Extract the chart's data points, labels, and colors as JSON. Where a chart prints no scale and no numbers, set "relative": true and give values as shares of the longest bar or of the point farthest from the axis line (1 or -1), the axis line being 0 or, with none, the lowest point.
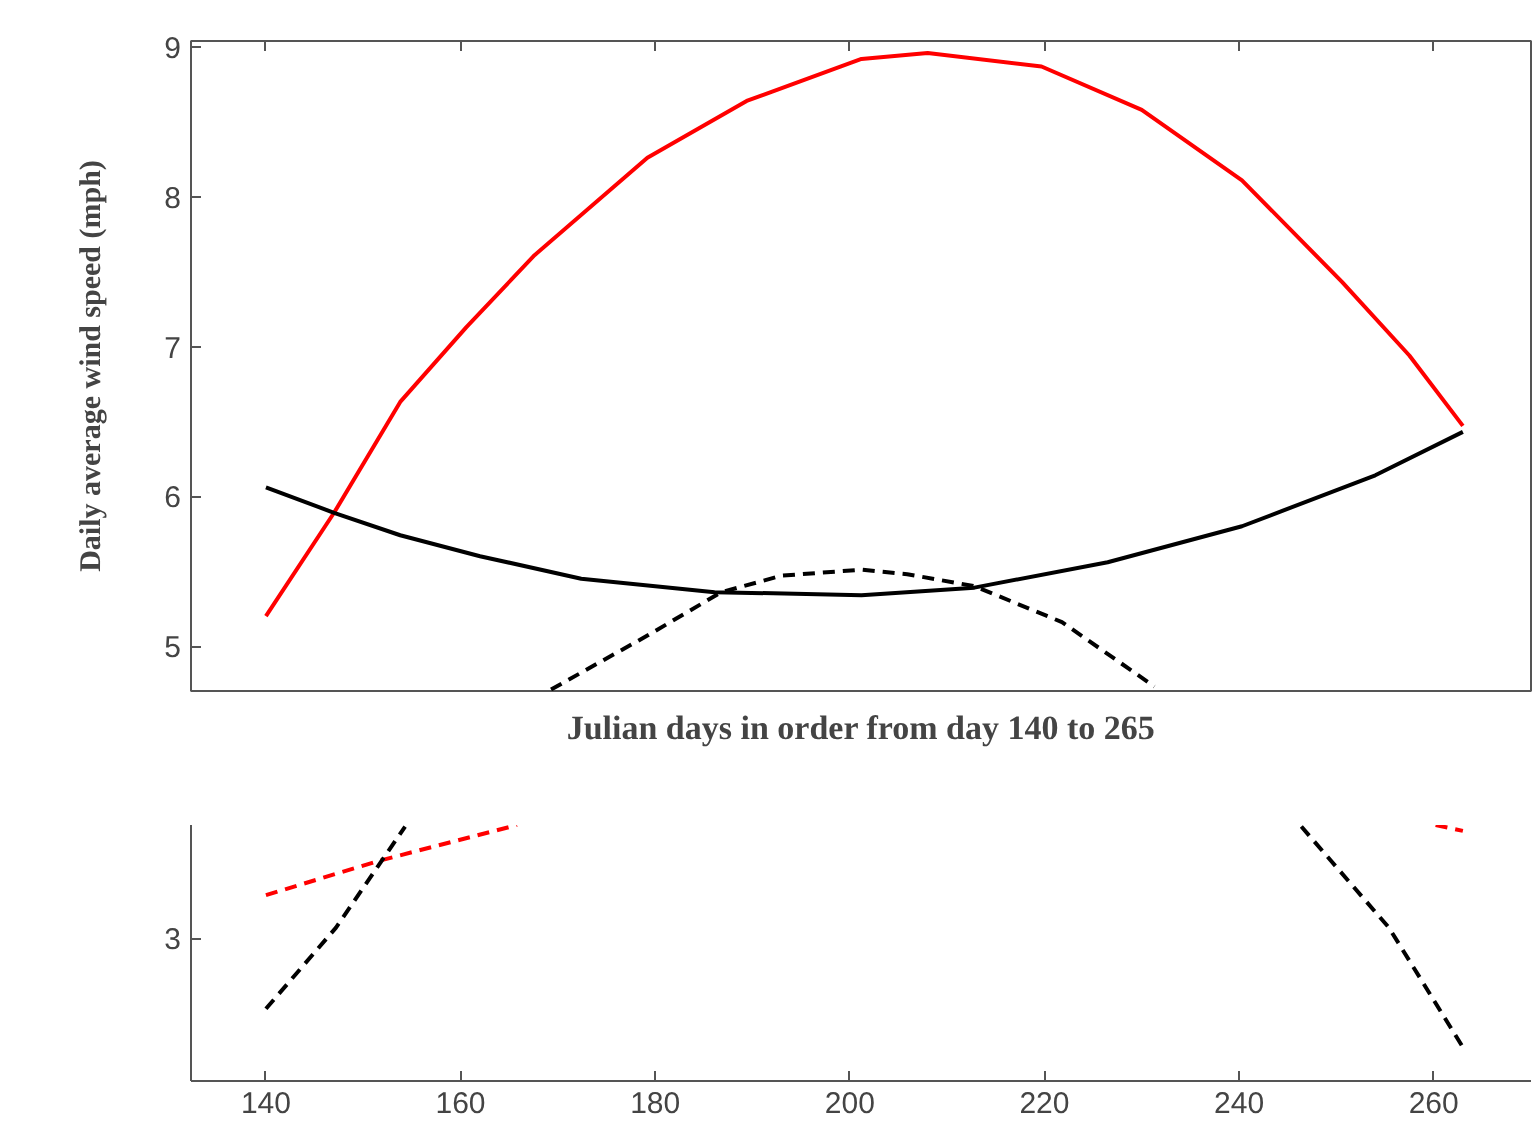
{
  "chart_data": [
    {
      "type": "line",
      "ylabel": "Daily average wind speed (mph)",
      "xlabel": "Julian days in order from day 140 to 265",
      "xlim": [
        132.3,
        270
      ],
      "ylim": [
        4.7,
        9.04
      ],
      "yticks": [
        5,
        6,
        7,
        8,
        9
      ],
      "xticks": [
        {
          "value": 140,
          "label": null
        },
        {
          "value": 160,
          "label": null
        },
        {
          "value": 180,
          "label": null
        },
        {
          "value": 200,
          "label": null
        },
        {
          "value": 220,
          "label": null
        },
        {
          "value": 240,
          "label": null
        },
        {
          "value": 260,
          "label": null
        }
      ],
      "tick_labels": "y",
      "grid": false,
      "series": [
        {
          "color": "#ff0000",
          "line_style": "solid",
          "x": [
            140,
            147,
            153.8,
            160.6,
            167.6,
            179.2,
            189.4,
            201.2,
            208,
            219.7,
            230,
            240.3,
            250.6,
            257.5,
            263
          ],
          "values": [
            5.2,
            5.89,
            6.63,
            7.13,
            7.61,
            8.26,
            8.64,
            8.92,
            8.96,
            8.87,
            8.58,
            8.11,
            7.43,
            6.94,
            6.47
          ]
        },
        {
          "color": "#000000",
          "line_style": "solid",
          "x": [
            140,
            147,
            153.8,
            162,
            172.4,
            186.1,
            201.2,
            212.8,
            226.5,
            240.3,
            254,
            263
          ],
          "values": [
            6.06,
            5.89,
            5.74,
            5.6,
            5.45,
            5.36,
            5.34,
            5.39,
            5.56,
            5.8,
            6.14,
            6.43
          ]
        },
        {
          "color": "#000000",
          "line_style": "dashed",
          "x": [
            169.3,
            179.2,
            186.8,
            193,
            201.2,
            205.9,
            212.8,
            221.8,
            231.3
          ],
          "values": [
            4.71,
            5.07,
            5.36,
            5.47,
            5.51,
            5.48,
            5.4,
            5.16,
            4.73
          ]
        }
      ]
    },
    {
      "type": "line",
      "relative": true,
      "xlim": [
        132.3,
        270
      ],
      "xticks": [
        140,
        160,
        180,
        200,
        220,
        240,
        260
      ],
      "annotations": [
        "3"
      ],
      "grid": false,
      "series": [
        {
          "color": "#ff0000",
          "line_style": "dashed",
          "x": [
            140,
            151.6,
            165.8,
            null,
            260.2,
            263
          ],
          "values": [
            0.726,
            0.86,
            1.0,
            null,
            1.0,
            0.977
          ]
        },
        {
          "color": "#000000",
          "line_style": "dashed",
          "x": [
            140,
            147.2,
            154.3,
            null,
            246.4,
            255.4,
            263
          ],
          "values": [
            0.282,
            0.599,
            0.994,
            null,
            0.994,
            0.599,
            0.132
          ]
        }
      ]
    }
  ]
}
